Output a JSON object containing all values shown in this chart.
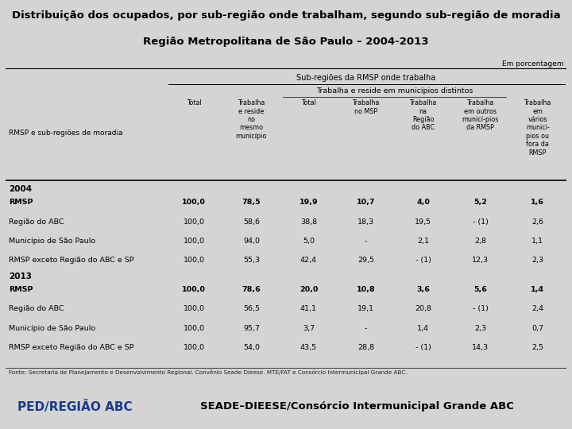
{
  "title_line1": "Distribuição dos ocupados, por sub-região onde trabalham, segundo sub-região de moradia",
  "title_line2": "Região Metropolitana de São Paulo – 2004-2013",
  "em_porcentagem": "Em porcentagem",
  "subregiao_header": "Sub-regiões da RMSP onde trabalha",
  "col_header_row_label": "RMSP e sub-regiões de moradia",
  "col_headers": [
    "Total",
    "Trabalha\ne reside\nno\nmesmo\nmunicípio",
    "Total",
    "Trabalha\nno MSP",
    "Trabalha\nna\nRegião\ndo ABC",
    "Trabalha\nem outros\nmunicí-pios\nda RMSP",
    "Trabalha\nem\nvários\nmunici-\npios ou\nfora da\nRMSP"
  ],
  "group1_year": "2004",
  "group2_year": "2013",
  "rows_2004": [
    [
      "RMSP",
      "100,0",
      "78,5",
      "19,9",
      "10,7",
      "4,0",
      "5,2",
      "1,6"
    ],
    [
      "Região do ABC",
      "100,0",
      "58,6",
      "38,8",
      "18,3",
      "19,5",
      "- (1)",
      "2,6"
    ],
    [
      "Município de São Paulo",
      "100,0",
      "94,0",
      "5,0",
      "-",
      "2,1",
      "2,8",
      "1,1"
    ],
    [
      "RMSP exceto Região do ABC e SP",
      "100,0",
      "55,3",
      "42,4",
      "29,5",
      "- (1)",
      "12,3",
      "2,3"
    ]
  ],
  "rows_2013": [
    [
      "RMSP",
      "100,0",
      "78,6",
      "20,0",
      "10,8",
      "3,6",
      "5,6",
      "1,4"
    ],
    [
      "Região do ABC",
      "100,0",
      "56,5",
      "41,1",
      "19,1",
      "20,8",
      "- (1)",
      "2,4"
    ],
    [
      "Município de São Paulo",
      "100,0",
      "95,7",
      "3,7",
      "-",
      "1,4",
      "2,3",
      "0,7"
    ],
    [
      "RMSP exceto Região do ABC e SP",
      "100,0",
      "54,0",
      "43,5",
      "28,8",
      "- (1)",
      "14,3",
      "2,5"
    ]
  ],
  "fonte": "Fonte: Secretaria de Planejamento e Desenvolvimento Regional. Convênio Seade Dieese. MTE/FAT e Consórcio Intermunicipal Grande ABC.",
  "footer_left": "PED/REGIÃO ABC",
  "footer_right": "SEADE–DIEESE/Consórcio Intermunicipal Grande ABC",
  "bg_color": "#d4d4d4",
  "table_bg": "#ffffff",
  "footer_bg": "#c8c8c8",
  "title_fontsize": 9.5,
  "footer_left_color": "#1a3a8a",
  "footer_right_color": "#000000"
}
